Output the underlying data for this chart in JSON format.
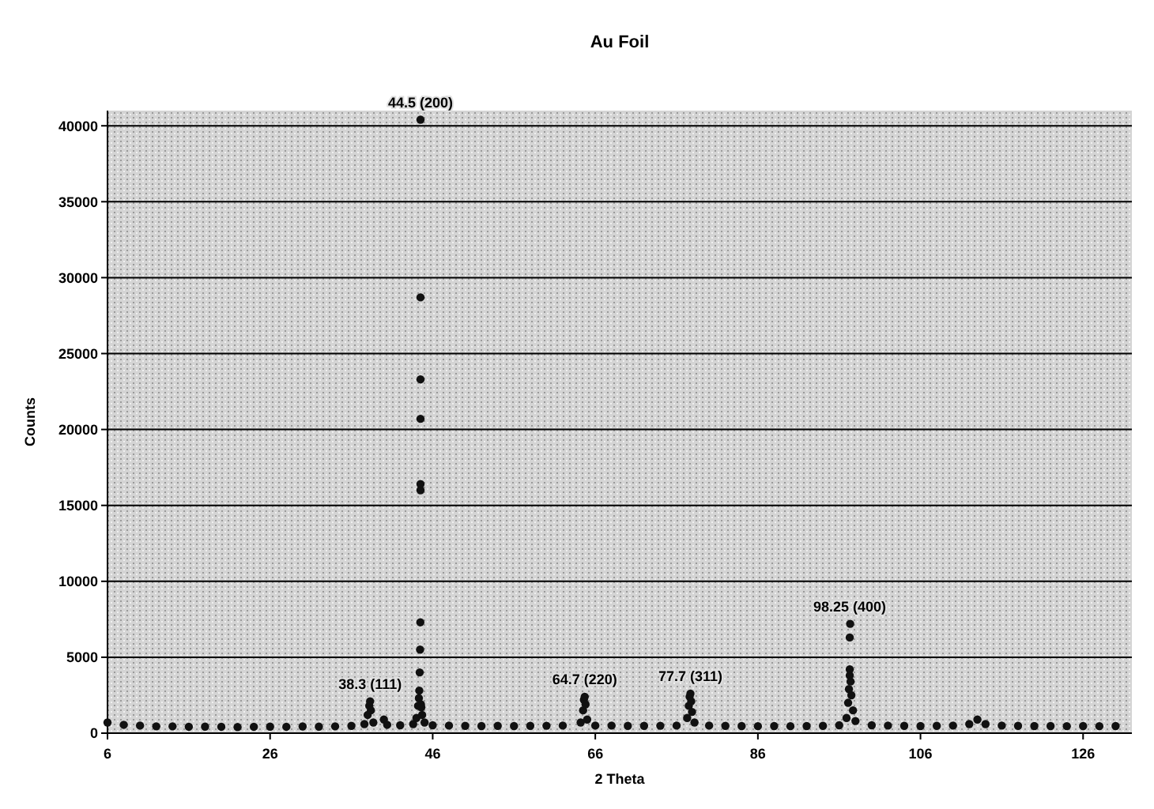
{
  "chart_data": {
    "type": "scatter",
    "title": "Au Foil",
    "xlabel": "2 Theta",
    "ylabel": "Counts",
    "xlim": [
      6,
      132
    ],
    "xticks": [
      6,
      26,
      46,
      66,
      86,
      106,
      126
    ],
    "ylim": [
      0,
      41000
    ],
    "yticks": [
      0,
      5000,
      10000,
      15000,
      20000,
      25000,
      30000,
      35000,
      40000
    ],
    "grid": "y",
    "marker": "circle",
    "series": [
      {
        "color": "#111111",
        "x": [
          6,
          8,
          10,
          12,
          14,
          16,
          18,
          20,
          22,
          24,
          26,
          28,
          30,
          32,
          34,
          36,
          37.6,
          38.0,
          38.2,
          38.3,
          38.4,
          38.7,
          40.0,
          40.4,
          42,
          43.6,
          44.0,
          44.2,
          44.3,
          44.35,
          44.4,
          44.45,
          44.48,
          44.5,
          44.5,
          44.5,
          44.5,
          44.5,
          44.5,
          44.55,
          44.6,
          44.7,
          45.0,
          46,
          48,
          50,
          52,
          54,
          56,
          58,
          60,
          62,
          64.2,
          64.5,
          64.6,
          64.7,
          64.8,
          65.0,
          66,
          68,
          70,
          72,
          74,
          76,
          77.3,
          77.5,
          77.6,
          77.7,
          77.8,
          77.9,
          78.2,
          80,
          82,
          84,
          86,
          88,
          90,
          92,
          94,
          96,
          96.9,
          97.1,
          97.2,
          97.3,
          97.3,
          97.3,
          97.35,
          97.4,
          97.5,
          97.7,
          98,
          100,
          102,
          104,
          106,
          108,
          110,
          112,
          113,
          114,
          116,
          118,
          120,
          122,
          124,
          126,
          128,
          130
        ],
        "values": [
          700,
          550,
          500,
          450,
          450,
          420,
          430,
          420,
          400,
          420,
          430,
          420,
          440,
          430,
          450,
          480,
          600,
          1200,
          1800,
          2100,
          1500,
          700,
          900,
          550,
          520,
          600,
          1000,
          1800,
          2300,
          2800,
          4000,
          5500,
          7300,
          16000,
          16400,
          20700,
          23300,
          28700,
          40400,
          1900,
          1700,
          1200,
          700,
          520,
          500,
          480,
          470,
          480,
          470,
          480,
          490,
          500,
          700,
          1500,
          2200,
          2400,
          1900,
          900,
          500,
          500,
          480,
          480,
          490,
          500,
          1000,
          1800,
          2400,
          2600,
          2100,
          1400,
          700,
          500,
          480,
          470,
          460,
          470,
          460,
          470,
          480,
          520,
          1000,
          2000,
          2900,
          3800,
          4200,
          6300,
          7200,
          3400,
          2500,
          1500,
          800,
          520,
          500,
          480,
          470,
          480,
          500,
          600,
          900,
          600,
          500,
          480,
          470,
          470,
          460,
          470,
          460,
          470
        ]
      }
    ],
    "annotations": [
      {
        "text": "38.3 (111)",
        "x": 38.3,
        "y": 2100
      },
      {
        "text": "44.5 (200)",
        "x": 44.5,
        "y": 40400
      },
      {
        "text": "64.7 (220)",
        "x": 64.7,
        "y": 2400
      },
      {
        "text": "77.7 (311)",
        "x": 77.7,
        "y": 2600
      },
      {
        "text": "98.25 (400)",
        "x": 97.3,
        "y": 7200
      }
    ]
  }
}
